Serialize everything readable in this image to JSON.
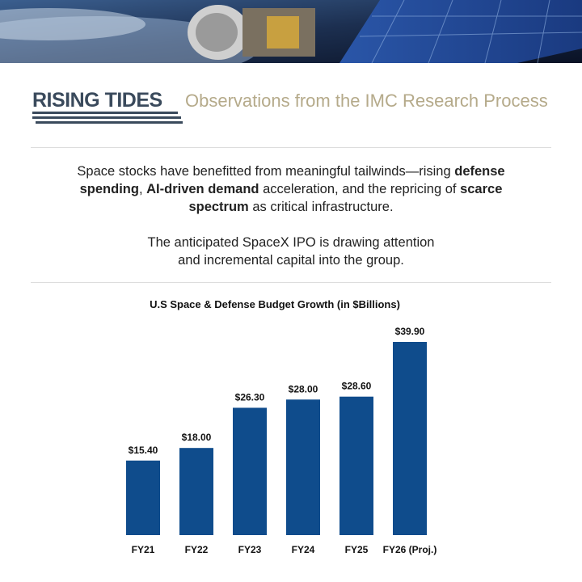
{
  "header": {
    "title": "RISING TIDES",
    "subtitle": "Observations from the IMC Research Process"
  },
  "paragraphs": [
    [
      {
        "text": "Space stocks have benefitted from meaningful tailwinds—rising ",
        "bold": false
      },
      {
        "text": "defense spending",
        "bold": true
      },
      {
        "text": ", ",
        "bold": false
      },
      {
        "text": "AI-driven demand",
        "bold": true
      },
      {
        "text": " acceleration, and the repricing of ",
        "bold": false
      },
      {
        "text": "scarce spectrum",
        "bold": true
      },
      {
        "text": " as critical infrastructure.",
        "bold": false
      }
    ],
    [
      {
        "text": "The anticipated SpaceX IPO is drawing attention and incremental capital into the group.",
        "bold": false
      }
    ]
  ],
  "chart_data": {
    "type": "bar",
    "title": "U.S Space & Defense Budget Growth (in $Billions)",
    "categories": [
      "FY21",
      "FY22",
      "FY23",
      "FY24",
      "FY25",
      "FY26 (Proj.)"
    ],
    "values": [
      15.4,
      18.0,
      26.3,
      28.0,
      28.6,
      39.9
    ],
    "value_labels": [
      "$15.40",
      "$18.00",
      "$26.30",
      "$28.00",
      "$28.60",
      "$39.90"
    ],
    "color": "#0f4c8c"
  }
}
